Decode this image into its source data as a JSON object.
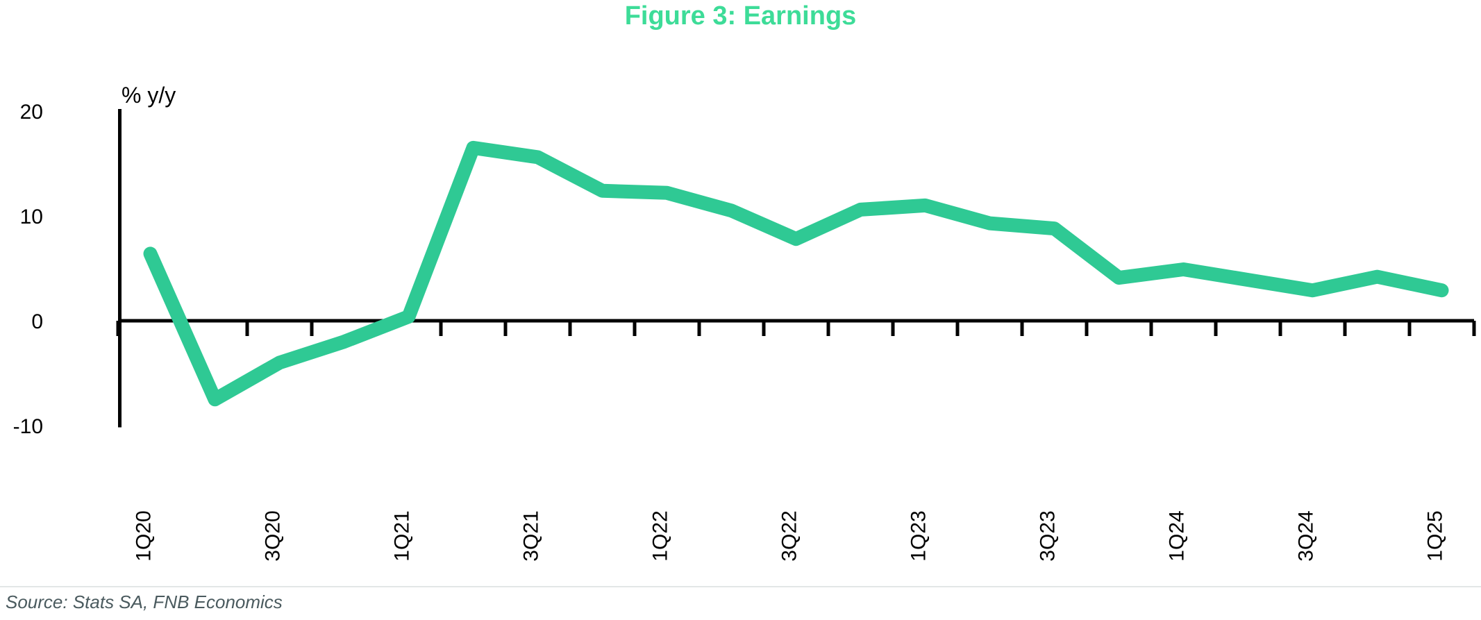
{
  "title": "Figure 3: Earnings",
  "source": "Source: Stats SA, FNB Economics",
  "colors": {
    "title": "#3ddc98",
    "line": "#2fc994",
    "axis": "#000000",
    "source_text": "#4a5a5e",
    "divider": "#e3e6e6"
  },
  "chart_data": {
    "type": "line",
    "title": "Figure 3: Earnings",
    "series_name": "Earnings growth",
    "ylabel": "% y/y",
    "xlabel": "",
    "categories": [
      "1Q20",
      "2Q20",
      "3Q20",
      "4Q20",
      "1Q21",
      "2Q21",
      "3Q21",
      "4Q21",
      "1Q22",
      "2Q22",
      "3Q22",
      "4Q22",
      "1Q23",
      "2Q23",
      "3Q23",
      "4Q23",
      "1Q24",
      "2Q24",
      "3Q24",
      "4Q24",
      "1Q25"
    ],
    "values": [
      6.4,
      -7.5,
      -4.0,
      -2.0,
      0.4,
      16.5,
      15.6,
      12.4,
      12.2,
      10.5,
      7.8,
      10.6,
      11.0,
      9.3,
      8.8,
      4.1,
      4.9,
      3.9,
      2.9,
      4.2,
      2.9
    ],
    "ylim": [
      -10,
      20
    ],
    "yticks": [
      20,
      10,
      0,
      -10
    ],
    "x_label_step": 2,
    "x_tick_labels": [
      "1Q20",
      "3Q20",
      "1Q21",
      "3Q21",
      "1Q22",
      "3Q22",
      "1Q23",
      "3Q23",
      "1Q24",
      "3Q24",
      "1Q25"
    ],
    "grid": false,
    "legend": "none"
  }
}
